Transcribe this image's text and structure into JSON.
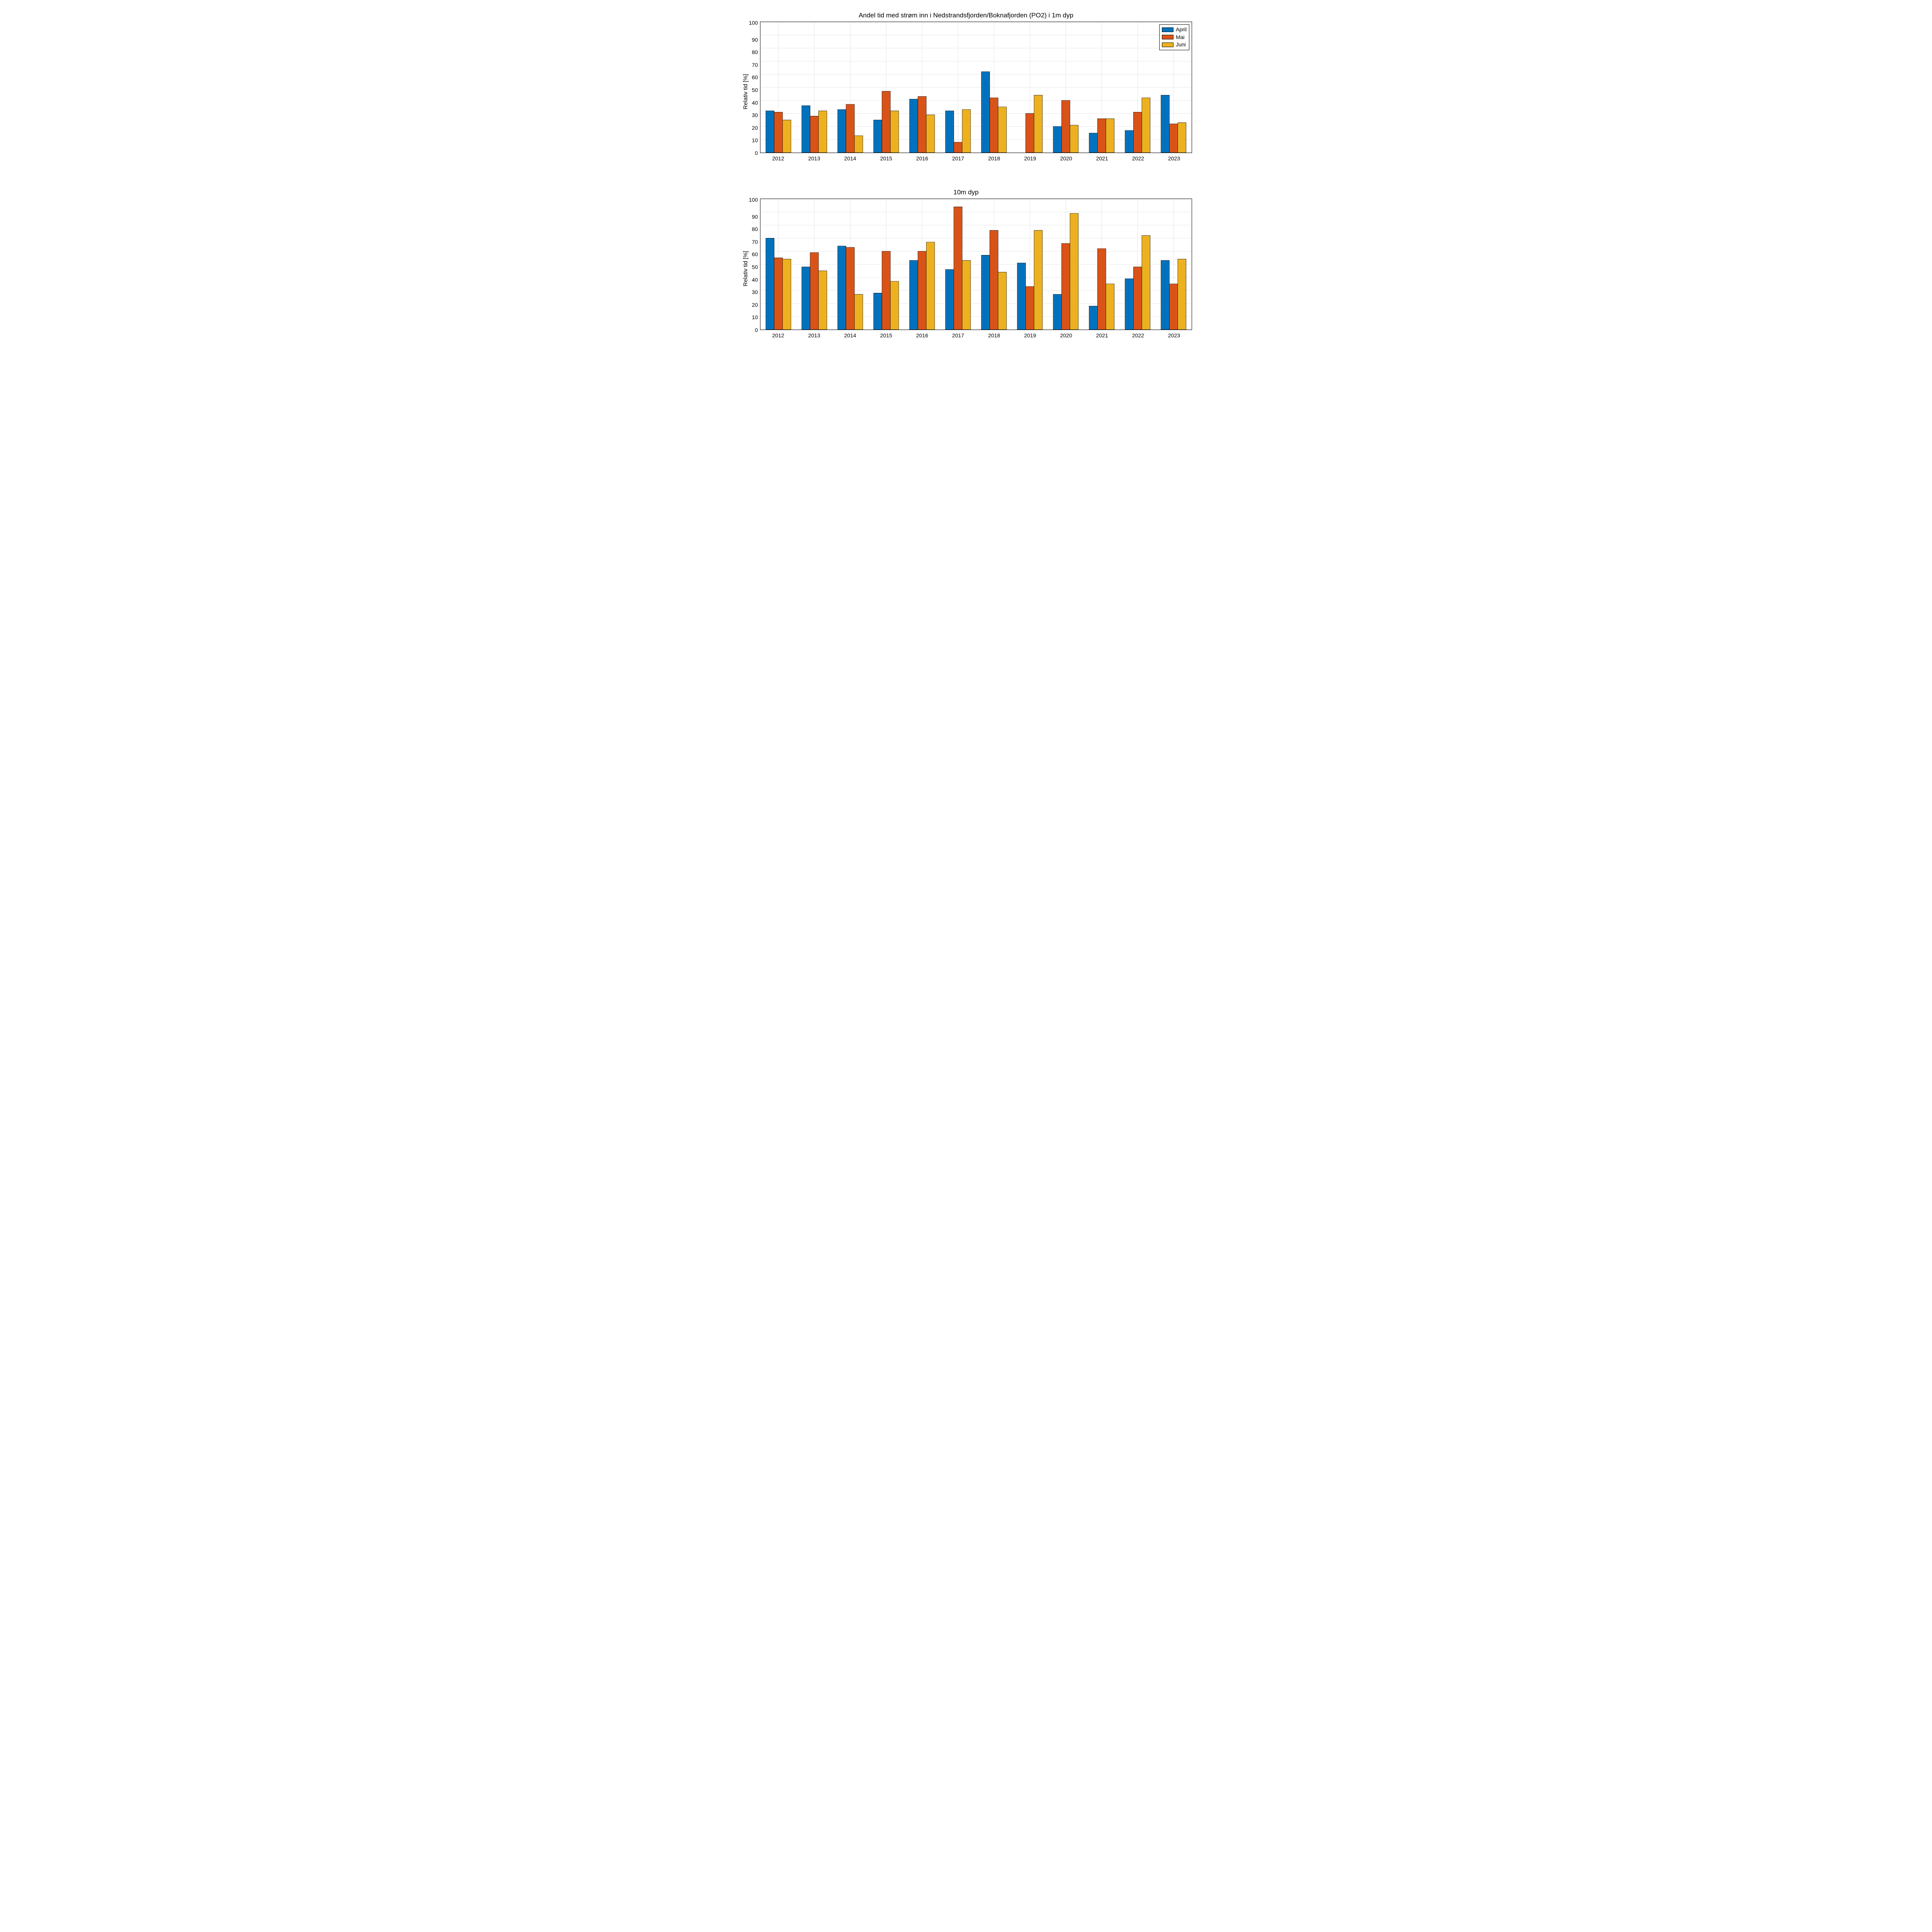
{
  "figure": {
    "background_color": "#ffffff",
    "font_family": "Helvetica, Arial, sans-serif"
  },
  "colors": {
    "april": "#0072bd",
    "mai": "#d95319",
    "juni": "#edb120",
    "grid": "#e6e6e6",
    "axis": "#000000"
  },
  "legend": {
    "items": [
      "April",
      "Mai",
      "Juni"
    ]
  },
  "axes": {
    "ylabel": "Relativ tid [%]",
    "ylim": [
      0,
      100
    ],
    "ytick_step": 10,
    "categories": [
      "2012",
      "2013",
      "2014",
      "2015",
      "2016",
      "2017",
      "2018",
      "2019",
      "2020",
      "2021",
      "2022",
      "2023"
    ],
    "bar_group_width": 0.7,
    "tick_fontsize": 14,
    "title_fontsize": 17,
    "label_fontsize": 15
  },
  "panels": [
    {
      "title": "Andel tid med strøm inn i Nedstrandsfjorden/Boknafjorden (PO2) i 1m dyp",
      "show_legend": true,
      "series": {
        "april": [
          32,
          36,
          33,
          25,
          41,
          32,
          62,
          0,
          20,
          15,
          17,
          44
        ],
        "mai": [
          31,
          28,
          37,
          47,
          43,
          8,
          42,
          30,
          40,
          26,
          31,
          22
        ],
        "juni": [
          25,
          32,
          13,
          32,
          29,
          33,
          35,
          44,
          21,
          26,
          42,
          23
        ]
      }
    },
    {
      "title": "10m dyp",
      "show_legend": false,
      "series": {
        "april": [
          70,
          48,
          64,
          28,
          53,
          46,
          57,
          51,
          27,
          18,
          39,
          53
        ],
        "mai": [
          55,
          59,
          63,
          60,
          60,
          94,
          76,
          33,
          66,
          62,
          48,
          35
        ],
        "juni": [
          54,
          45,
          27,
          37,
          67,
          53,
          44,
          76,
          89,
          35,
          72,
          54
        ]
      }
    }
  ]
}
